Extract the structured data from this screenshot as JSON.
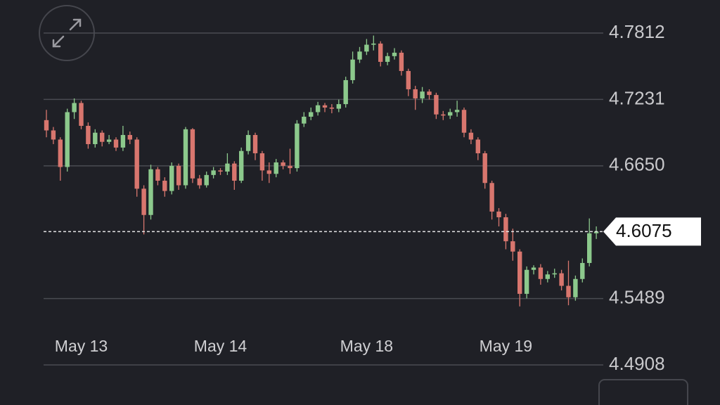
{
  "chart_data": {
    "type": "candlestick",
    "categories": [
      null,
      null,
      null,
      null,
      null,
      "May 13",
      null,
      null,
      null,
      null,
      null,
      null,
      null,
      null,
      null,
      null,
      null,
      null,
      null,
      null,
      null,
      null,
      null,
      null,
      null,
      "May 14",
      null,
      null,
      null,
      null,
      null,
      null,
      null,
      null,
      null,
      null,
      null,
      null,
      null,
      null,
      null,
      null,
      null,
      null,
      null,
      null,
      "May 18",
      null,
      null,
      null,
      null,
      null,
      null,
      null,
      null,
      null,
      null,
      null,
      null,
      null,
      null,
      null,
      null,
      null,
      null,
      null,
      "May 19",
      null,
      null,
      null,
      null,
      null,
      null,
      null,
      null,
      null,
      null,
      null,
      null,
      null
    ],
    "open": [
      4.705,
      4.696,
      4.688,
      4.664,
      4.712,
      4.72,
      4.7,
      4.684,
      4.694,
      4.686,
      4.688,
      4.681,
      4.692,
      4.688,
      4.645,
      4.622,
      4.662,
      4.652,
      4.643,
      4.665,
      4.648,
      4.697,
      4.654,
      4.648,
      4.657,
      4.661,
      4.66,
      4.667,
      4.652,
      4.678,
      4.692,
      4.676,
      4.661,
      4.658,
      4.668,
      4.665,
      4.663,
      4.702,
      4.708,
      4.712,
      4.718,
      4.716,
      4.715,
      4.719,
      4.74,
      4.758,
      4.765,
      4.771,
      4.772,
      4.756,
      4.761,
      4.764,
      4.748,
      4.732,
      4.724,
      4.73,
      4.727,
      4.71,
      4.709,
      4.712,
      4.714,
      4.694,
      4.688,
      4.676,
      4.65,
      4.625,
      4.62,
      4.599,
      4.59,
      4.553,
      4.574,
      4.576,
      4.566,
      4.57,
      4.571,
      4.56,
      4.55,
      4.566,
      4.58,
      4.606
    ],
    "high": [
      4.714,
      4.699,
      4.69,
      4.715,
      4.724,
      4.722,
      4.703,
      4.697,
      4.696,
      4.692,
      4.69,
      4.7,
      4.695,
      4.69,
      4.648,
      4.666,
      4.664,
      4.655,
      4.668,
      4.667,
      4.699,
      4.698,
      4.657,
      4.66,
      4.664,
      4.663,
      4.676,
      4.669,
      4.681,
      4.696,
      4.694,
      4.678,
      4.668,
      4.671,
      4.67,
      4.68,
      4.705,
      4.712,
      4.716,
      4.721,
      4.72,
      4.719,
      4.723,
      4.743,
      4.765,
      4.769,
      4.776,
      4.779,
      4.774,
      4.764,
      4.768,
      4.766,
      4.75,
      4.735,
      4.734,
      4.732,
      4.729,
      4.713,
      4.715,
      4.722,
      4.716,
      4.697,
      4.69,
      4.678,
      4.652,
      4.628,
      4.623,
      4.61,
      4.592,
      4.577,
      4.578,
      4.579,
      4.573,
      4.575,
      4.574,
      4.582,
      4.569,
      4.584,
      4.619,
      4.612
    ],
    "low": [
      4.69,
      4.684,
      4.652,
      4.66,
      4.706,
      4.697,
      4.68,
      4.681,
      4.682,
      4.684,
      4.678,
      4.678,
      4.684,
      4.638,
      4.605,
      4.618,
      4.648,
      4.638,
      4.64,
      4.644,
      4.645,
      4.65,
      4.645,
      4.646,
      4.654,
      4.657,
      4.657,
      4.644,
      4.65,
      4.675,
      4.67,
      4.652,
      4.65,
      4.655,
      4.662,
      4.658,
      4.66,
      4.699,
      4.705,
      4.709,
      4.712,
      4.711,
      4.712,
      4.716,
      4.737,
      4.755,
      4.762,
      4.766,
      4.752,
      4.753,
      4.758,
      4.744,
      4.726,
      4.714,
      4.72,
      4.723,
      4.706,
      4.705,
      4.706,
      4.708,
      4.69,
      4.684,
      4.67,
      4.645,
      4.618,
      4.612,
      4.592,
      4.582,
      4.542,
      4.549,
      4.57,
      4.561,
      4.563,
      4.567,
      4.556,
      4.543,
      4.547,
      4.563,
      4.577,
      4.601
    ],
    "close": [
      4.696,
      4.688,
      4.664,
      4.712,
      4.72,
      4.7,
      4.684,
      4.694,
      4.686,
      4.688,
      4.681,
      4.692,
      4.688,
      4.645,
      4.622,
      4.662,
      4.652,
      4.643,
      4.665,
      4.648,
      4.697,
      4.654,
      4.648,
      4.657,
      4.661,
      4.66,
      4.667,
      4.652,
      4.678,
      4.692,
      4.676,
      4.661,
      4.658,
      4.668,
      4.665,
      4.663,
      4.702,
      4.708,
      4.712,
      4.718,
      4.716,
      4.715,
      4.719,
      4.74,
      4.758,
      4.765,
      4.771,
      4.772,
      4.756,
      4.761,
      4.764,
      4.748,
      4.732,
      4.724,
      4.73,
      4.727,
      4.71,
      4.709,
      4.712,
      4.714,
      4.694,
      4.688,
      4.676,
      4.65,
      4.625,
      4.62,
      4.599,
      4.59,
      4.553,
      4.574,
      4.576,
      4.566,
      4.57,
      4.571,
      4.56,
      4.55,
      4.566,
      4.58,
      4.606,
      4.6075
    ],
    "up_color": "#8cc98c",
    "down_color": "#d8766e",
    "ylim": [
      4.4908,
      4.7812
    ],
    "yticks": [
      4.7812,
      4.7231,
      {
        "value": 4.665,
        "label": "4.6650"
      },
      4.5489,
      4.4908
    ],
    "grid": true,
    "last_price": 4.6075
  }
}
